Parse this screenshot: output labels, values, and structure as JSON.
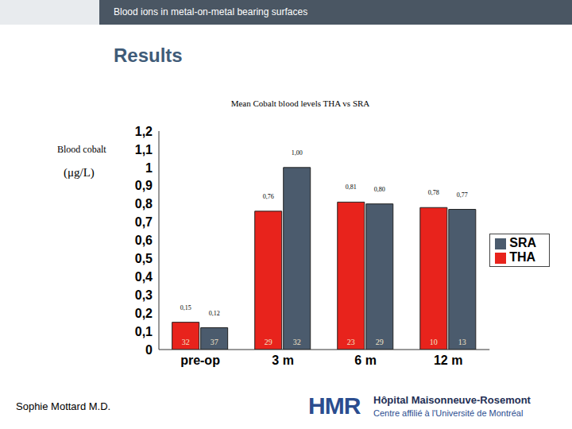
{
  "header": {
    "title": "Blood ions in metal-on-metal bearing surfaces",
    "section": "Results"
  },
  "chart_data": {
    "type": "bar",
    "title": "Mean Cobalt blood levels THA vs SRA",
    "y_label": "Blood cobalt",
    "y_unit": "(μg/L)",
    "categories": [
      "pre-op",
      "3 m",
      "6 m",
      "12 m"
    ],
    "series": [
      {
        "name": "THA",
        "color": "#e8231c",
        "values": [
          0.15,
          0.76,
          0.81,
          0.78
        ],
        "value_labels": [
          "0,15",
          "0,76",
          "0,81",
          "0,78"
        ],
        "counts": [
          32,
          29,
          23,
          10
        ]
      },
      {
        "name": "SRA",
        "color": "#4b5b6d",
        "values": [
          0.12,
          1.0,
          0.8,
          0.77
        ],
        "value_labels": [
          "0,12",
          "1,00",
          "0,80",
          "0,77"
        ],
        "counts": [
          37,
          32,
          29,
          13
        ]
      }
    ],
    "ylim": [
      0,
      1.2
    ],
    "yticks": [
      0,
      {
        "value": 0.1,
        "label": "0,1"
      },
      {
        "value": 0.2,
        "label": "0,2"
      },
      {
        "value": 0.3,
        "label": "0,3"
      },
      {
        "value": 0.4,
        "label": "0,4"
      },
      {
        "value": 0.5,
        "label": "0,5"
      },
      {
        "value": 0.6,
        "label": "0,6"
      },
      {
        "value": 0.7,
        "label": "0,7"
      },
      {
        "value": 0.8,
        "label": "0,8"
      },
      {
        "value": 0.9,
        "label": "0,9"
      },
      1,
      {
        "value": 1.1,
        "label": "1,1"
      },
      {
        "value": 1.2,
        "label": "1,2"
      }
    ],
    "data_labels": true,
    "legend": "right",
    "grid": false
  },
  "footer": {
    "author": "Sophie Mottard M.D.",
    "logo": "HMR",
    "institution": "Hôpital Maisonneuve-Rosemont",
    "affiliation": "Centre affilié à l'Université de Montréal"
  }
}
